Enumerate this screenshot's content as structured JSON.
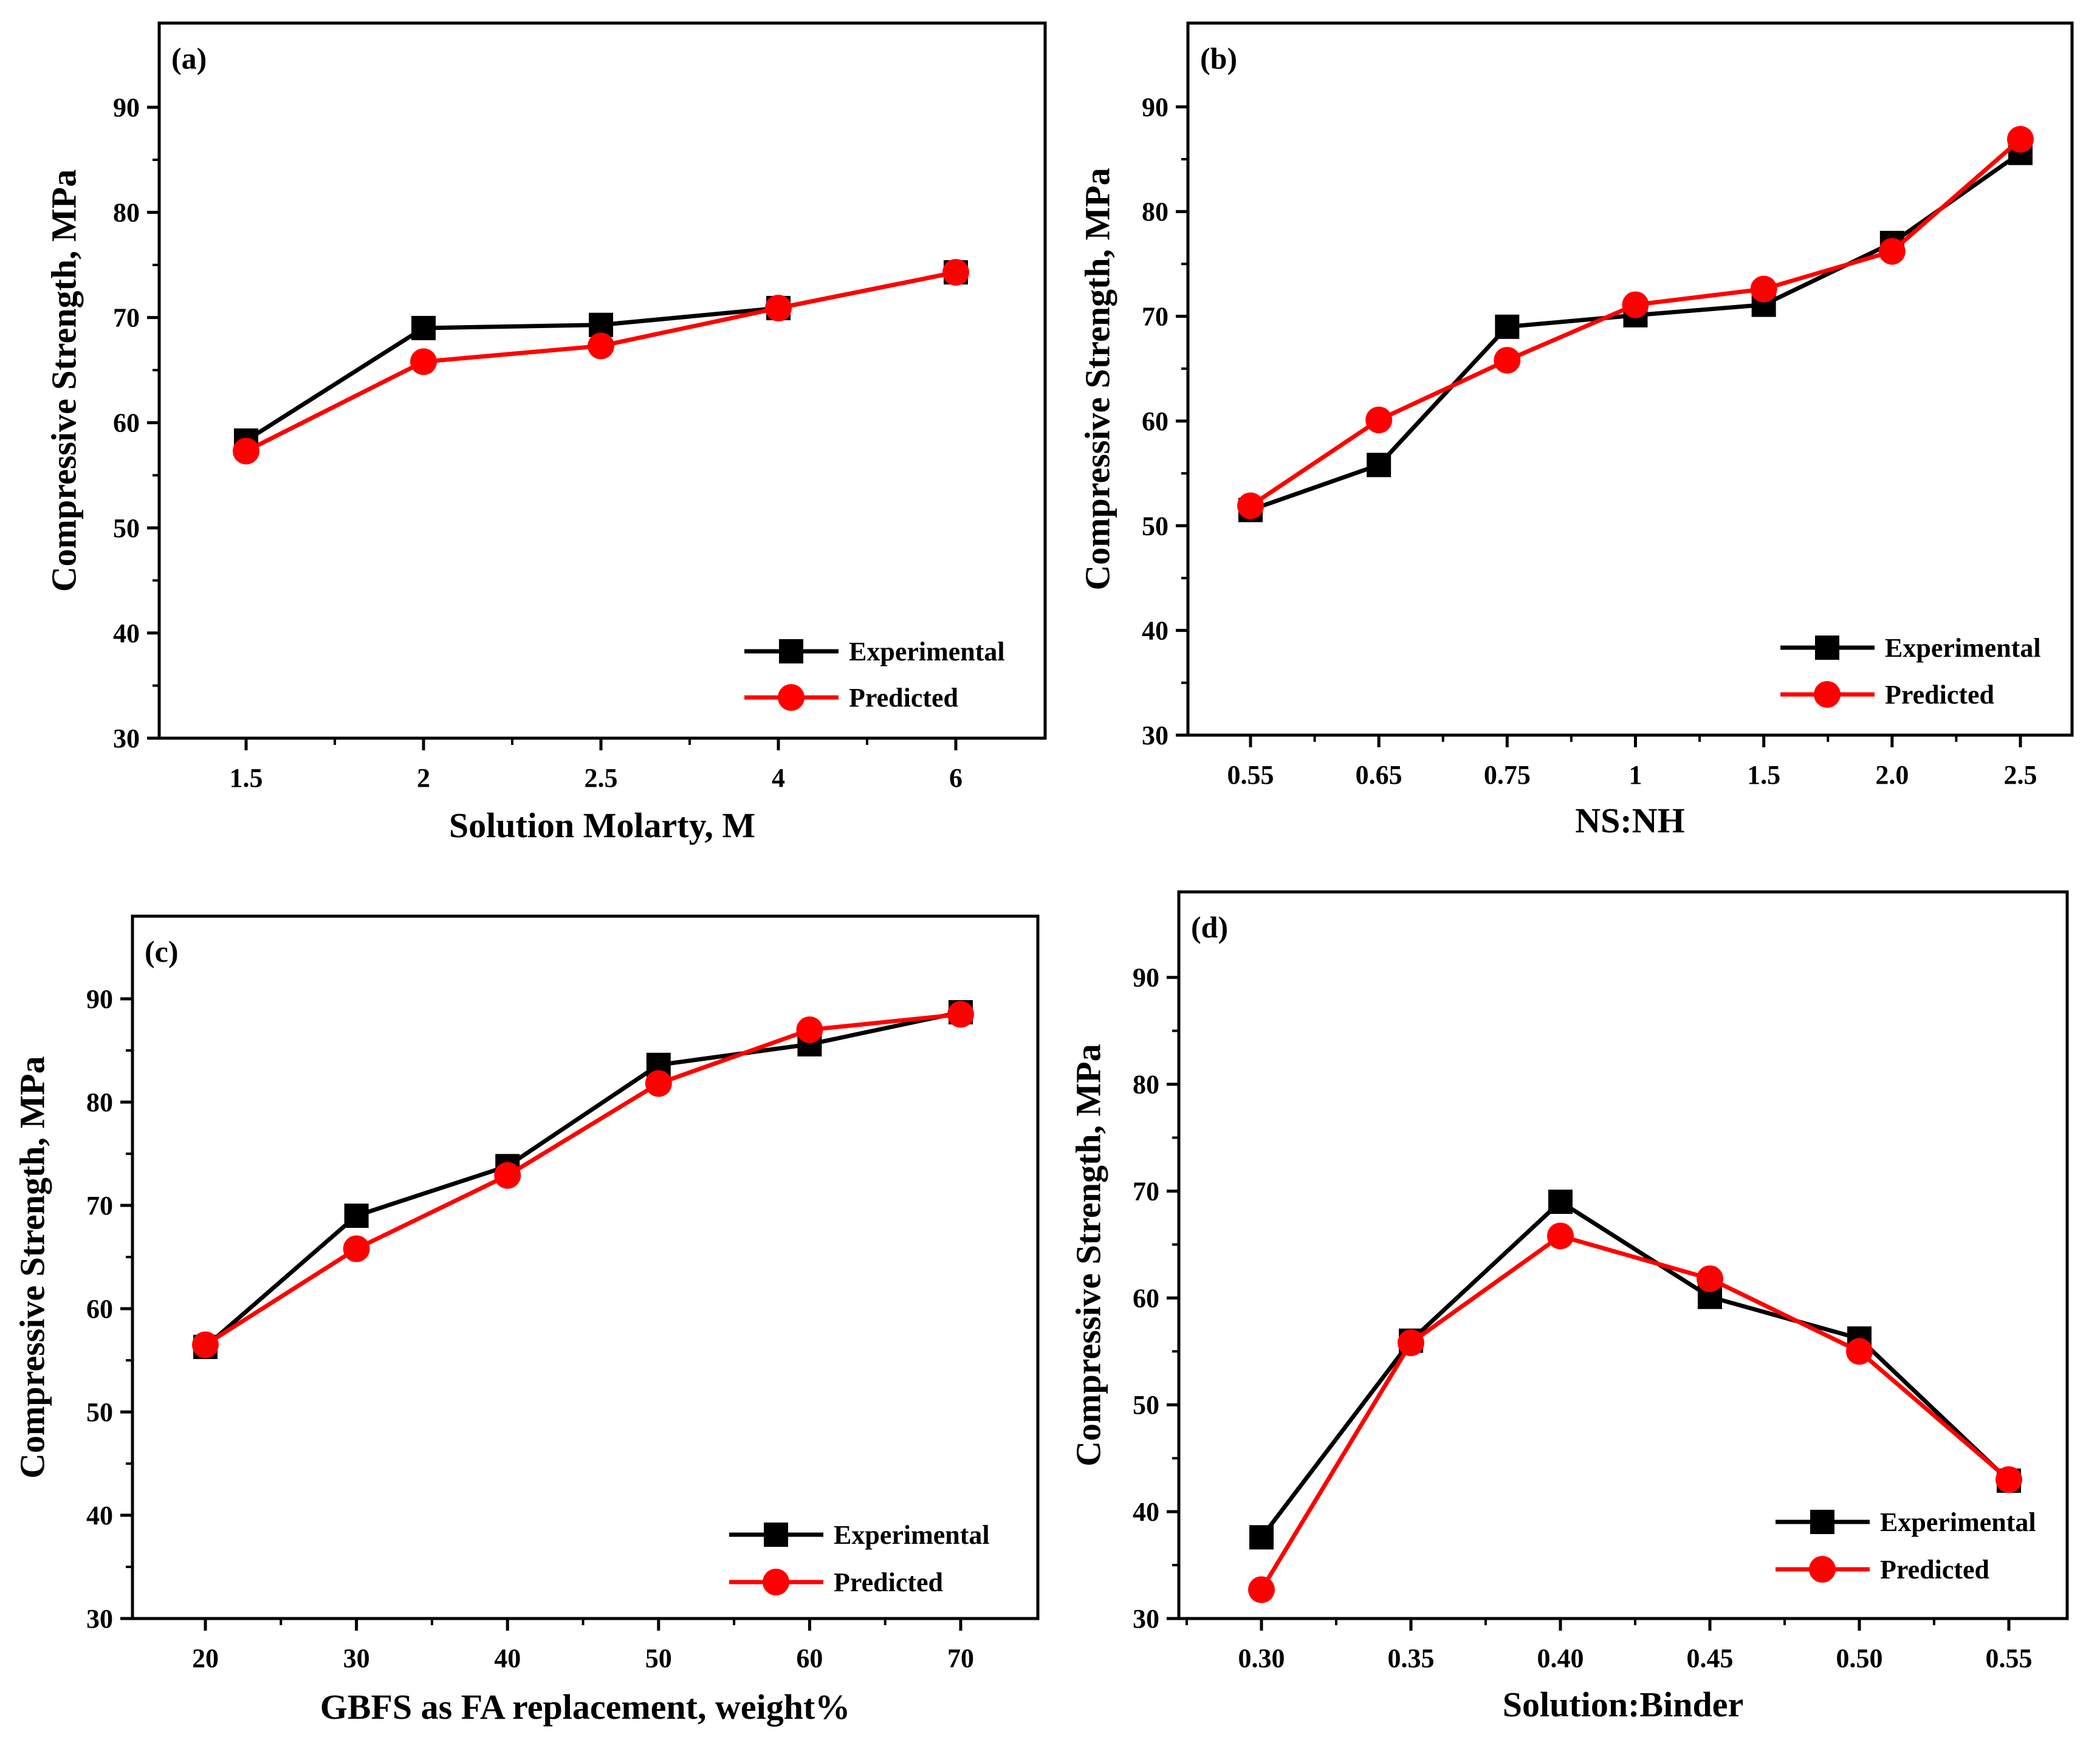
{
  "colors": {
    "experimental": "#000000",
    "predicted": "#ff0000",
    "axis": "#000000"
  },
  "chart_data": [
    {
      "panel_label": "(a)",
      "type": "line",
      "xlabel": "Solution Molarty, M",
      "ylabel": "Compressive Strength, MPa",
      "categories": [
        "1.5",
        "2",
        "2.5",
        "4",
        "6"
      ],
      "ylim": [
        30,
        98
      ],
      "yticks": [
        30,
        40,
        50,
        60,
        70,
        80,
        90
      ],
      "series": [
        {
          "name": "Experimental",
          "marker": "square",
          "values": [
            58.3,
            69.0,
            69.3,
            70.9,
            74.3
          ]
        },
        {
          "name": "Predicted",
          "marker": "circle",
          "values": [
            57.3,
            65.8,
            67.3,
            70.9,
            74.3
          ]
        }
      ],
      "legend": "bottom-right"
    },
    {
      "panel_label": "(b)",
      "type": "line",
      "xlabel": "NS:NH",
      "ylabel": "Compressive Strength, MPa",
      "categories": [
        "0.55",
        "0.65",
        "0.75",
        "1",
        "1.5",
        "2.0",
        "2.5"
      ],
      "ylim": [
        30,
        98
      ],
      "yticks": [
        30,
        40,
        50,
        60,
        70,
        80,
        90
      ],
      "series": [
        {
          "name": "Experimental",
          "marker": "square",
          "values": [
            51.5,
            55.8,
            69.0,
            70.1,
            71.1,
            77.0,
            85.6
          ]
        },
        {
          "name": "Predicted",
          "marker": "circle",
          "values": [
            51.9,
            60.1,
            65.8,
            71.1,
            72.6,
            76.2,
            86.9
          ]
        }
      ],
      "legend": "bottom-right"
    },
    {
      "panel_label": "(c)",
      "type": "line",
      "xlabel": "GBFS as FA replacement, weight%",
      "ylabel": "Compressive Strength, MPa",
      "categories": [
        "20",
        "30",
        "40",
        "50",
        "60",
        "70"
      ],
      "ylim": [
        30,
        98
      ],
      "yticks": [
        30,
        40,
        50,
        60,
        70,
        80,
        90
      ],
      "series": [
        {
          "name": "Experimental",
          "marker": "square",
          "values": [
            56.3,
            69.0,
            73.8,
            83.6,
            85.6,
            88.7
          ]
        },
        {
          "name": "Predicted",
          "marker": "circle",
          "values": [
            56.5,
            65.8,
            72.9,
            81.8,
            87.0,
            88.5
          ]
        }
      ],
      "legend": "bottom-right"
    },
    {
      "panel_label": "(d)",
      "type": "line",
      "xlabel": "Solution:Binder",
      "ylabel": "Compressive Strength, MPa",
      "categories": [
        "0.30",
        "0.35",
        "0.40",
        "0.45",
        "0.50",
        "0.55"
      ],
      "ylim": [
        30,
        98
      ],
      "yticks": [
        30,
        40,
        50,
        60,
        70,
        80,
        90
      ],
      "series": [
        {
          "name": "Experimental",
          "marker": "square",
          "values": [
            37.6,
            56.0,
            69.0,
            60.1,
            56.2,
            42.9
          ]
        },
        {
          "name": "Predicted",
          "marker": "circle",
          "values": [
            32.7,
            55.8,
            65.8,
            61.8,
            55.0,
            43.0
          ]
        }
      ],
      "legend": "bottom-right"
    }
  ]
}
